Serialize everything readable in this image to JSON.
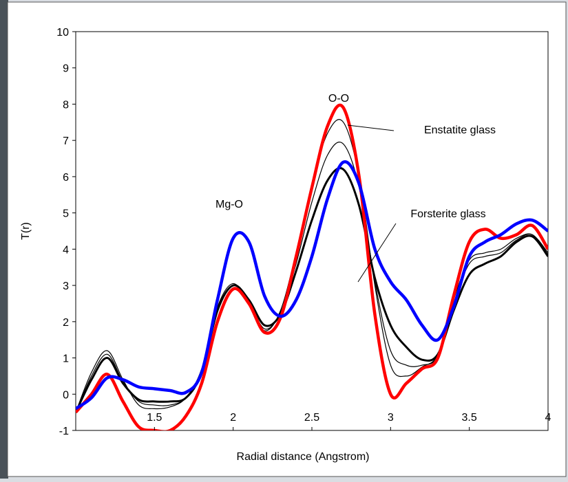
{
  "chart_data": {
    "type": "line",
    "x_label": "Radial distance (Angstrom)",
    "y_label": "T(r)",
    "annotations": [
      "O-O",
      "Enstatite glass",
      "Mg-O",
      "Forsterite glass"
    ],
    "x": [
      1,
      1.1,
      1.2,
      1.3,
      1.4,
      1.5,
      1.6,
      1.7,
      1.8,
      1.9,
      2,
      2.1,
      2.2,
      2.3,
      2.4,
      2.5,
      2.6,
      2.7,
      2.8,
      2.9,
      3,
      3.1,
      3.2,
      3.3,
      3.4,
      3.5,
      3.6,
      3.7,
      3.8,
      3.9,
      4
    ],
    "series": [
      {
        "color": "#000000",
        "linewidth": 1.2,
        "values": [
          -0.5,
          0.6,
          1.2,
          0.4,
          -0.3,
          -0.4,
          -0.35,
          -0.1,
          0.7,
          2.4,
          3.05,
          2.5,
          1.75,
          2.3,
          3.9,
          5.8,
          7.2,
          7.5,
          6.0,
          3.0,
          0.8,
          0.5,
          0.75,
          1.1,
          2.6,
          3.7,
          3.9,
          4.0,
          4.3,
          4.4,
          3.9
        ]
      },
      {
        "color": "#000000",
        "linewidth": 1.2,
        "values": [
          -0.5,
          0.5,
          1.1,
          0.35,
          -0.2,
          -0.3,
          -0.3,
          -0.1,
          0.65,
          2.35,
          3.0,
          2.55,
          1.8,
          2.25,
          3.6,
          5.3,
          6.6,
          6.9,
          5.7,
          3.1,
          1.2,
          0.8,
          0.8,
          1.05,
          2.5,
          3.6,
          3.8,
          3.9,
          4.25,
          4.4,
          3.85
        ]
      },
      {
        "color": "#000000",
        "linewidth": 3,
        "values": [
          -0.5,
          0.4,
          1.0,
          0.3,
          -0.15,
          -0.2,
          -0.2,
          -0.1,
          0.6,
          2.3,
          3.0,
          2.6,
          1.9,
          2.2,
          3.4,
          4.8,
          5.9,
          6.2,
          5.2,
          3.2,
          1.9,
          1.3,
          0.95,
          1.1,
          2.3,
          3.3,
          3.6,
          3.8,
          4.2,
          4.35,
          3.8
        ]
      },
      {
        "color": "#ff0000",
        "linewidth": 4.5,
        "values": [
          -0.5,
          0.0,
          0.55,
          -0.2,
          -0.9,
          -1.0,
          -1.0,
          -0.6,
          0.3,
          2.0,
          2.9,
          2.5,
          1.7,
          2.1,
          3.8,
          5.7,
          7.4,
          7.9,
          6.0,
          2.2,
          0.0,
          0.3,
          0.7,
          1.0,
          2.7,
          4.2,
          4.55,
          4.3,
          4.4,
          4.65,
          4.0
        ]
      },
      {
        "color": "#0000ff",
        "linewidth": 4.5,
        "values": [
          -0.4,
          -0.1,
          0.45,
          0.4,
          0.2,
          0.15,
          0.1,
          0.05,
          0.6,
          2.6,
          4.3,
          4.2,
          2.7,
          2.15,
          2.6,
          3.8,
          5.4,
          6.4,
          5.8,
          4.0,
          3.1,
          2.6,
          1.9,
          1.5,
          2.4,
          3.8,
          4.2,
          4.4,
          4.7,
          4.8,
          4.5
        ]
      }
    ],
    "xlim": [
      1,
      4
    ],
    "xticks": [
      1.5,
      2,
      2.5,
      3,
      3.5,
      4
    ],
    "ylim": [
      -1,
      10
    ],
    "yticks": [
      -1,
      0,
      1,
      2,
      3,
      4,
      5,
      6,
      7,
      8,
      9,
      10
    ]
  }
}
